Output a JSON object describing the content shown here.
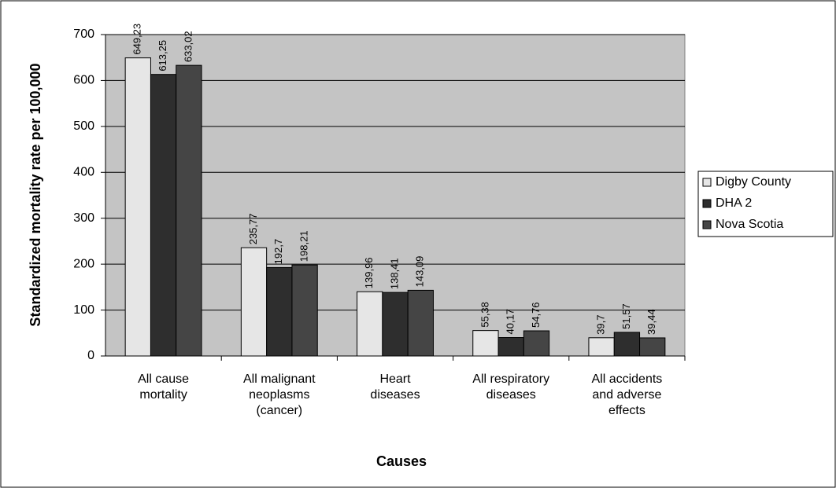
{
  "chart_data": {
    "type": "bar",
    "x_label": "Causes",
    "y_label": "Standardized mortality rate per 100,000",
    "categories": [
      "All cause mortality",
      "All malignant neoplasms (cancer)",
      "Heart diseases",
      "All respiratory diseases",
      "All accidents and adverse effects"
    ],
    "series": [
      {
        "name": "Digby County",
        "color": "#e6e6e6",
        "values": [
          649.23,
          235.77,
          139.96,
          55.38,
          39.7
        ],
        "value_labels": [
          "649,23",
          "235,77",
          "139,96",
          "55,38",
          "39,7"
        ]
      },
      {
        "name": "DHA 2",
        "color": "#2e2e2e",
        "values": [
          613.25,
          192.7,
          138.41,
          40.17,
          51.57
        ],
        "value_labels": [
          "613,25",
          "192,7",
          "138,41",
          "40,17",
          "51,57"
        ]
      },
      {
        "name": "Nova Scotia",
        "color": "#454545",
        "values": [
          633.02,
          198.21,
          143.09,
          54.76,
          39.44
        ],
        "value_labels": [
          "633,02",
          "198,21",
          "143,09",
          "54,76",
          "39,44"
        ]
      }
    ],
    "ylim": [
      0,
      700
    ],
    "yticks": [
      0,
      100,
      200,
      300,
      400,
      500,
      600,
      700
    ],
    "grid": true,
    "legend": "right"
  }
}
